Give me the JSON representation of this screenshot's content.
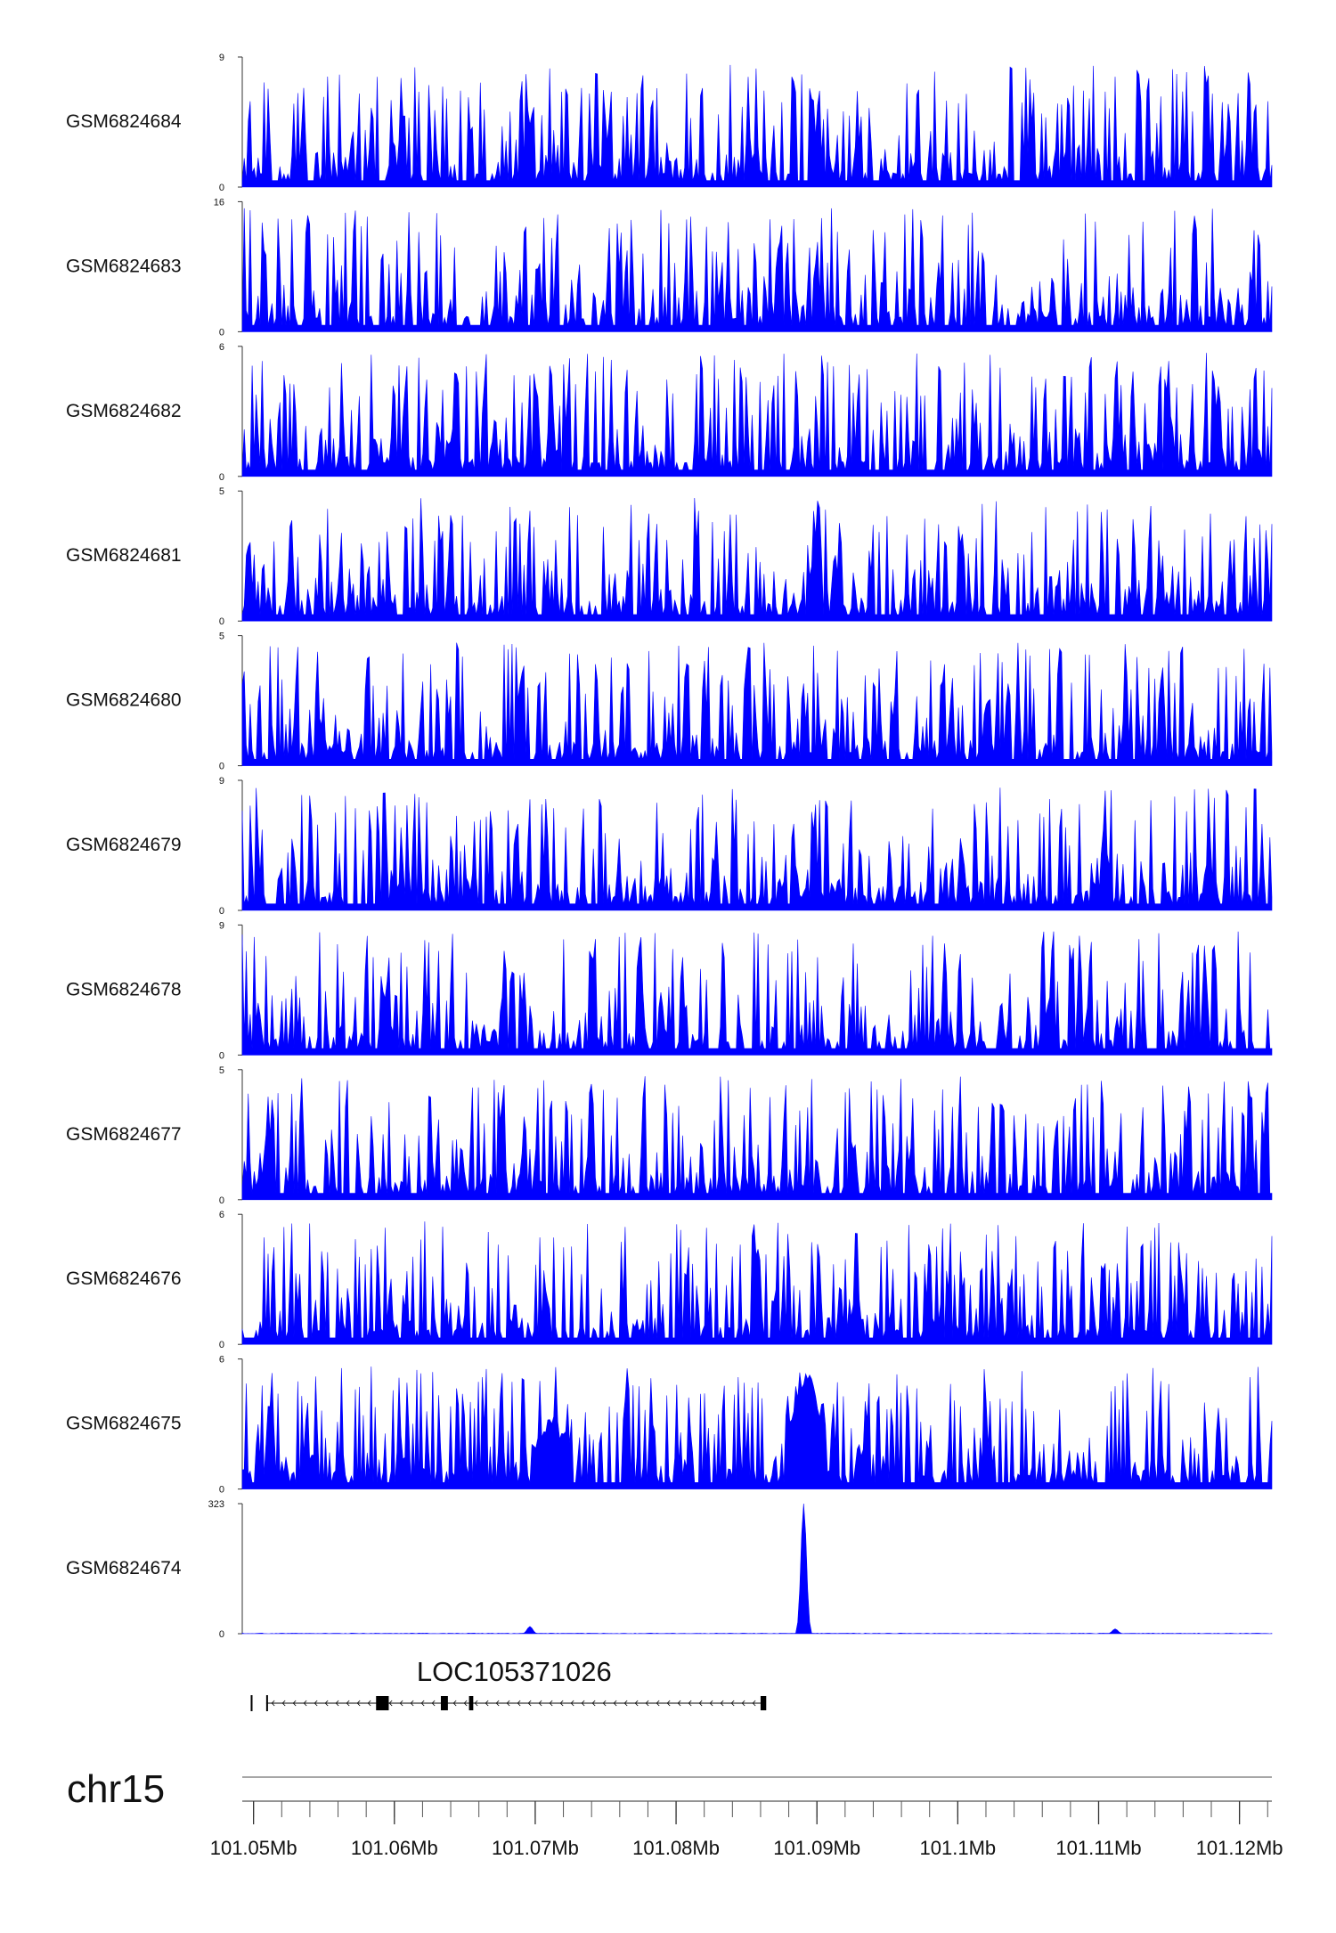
{
  "chart_data": {
    "type": "area",
    "title": "",
    "chromosome": "chr15",
    "xlim": [
      101.0492,
      101.1223
    ],
    "x_unit": "Mb",
    "color": "#0000FF",
    "tracks": [
      {
        "name": "GSM6824684",
        "ylim": [
          0,
          9
        ],
        "ymax_label": "9",
        "ymin_label": "0",
        "seed": 84
      },
      {
        "name": "GSM6824683",
        "ylim": [
          0,
          16
        ],
        "ymax_label": "16",
        "ymin_label": "0",
        "seed": 83
      },
      {
        "name": "GSM6824682",
        "ylim": [
          0,
          6
        ],
        "ymax_label": "6",
        "ymin_label": "0",
        "seed": 82
      },
      {
        "name": "GSM6824681",
        "ylim": [
          0,
          5
        ],
        "ymax_label": "5",
        "ymin_label": "0",
        "seed": 81
      },
      {
        "name": "GSM6824680",
        "ylim": [
          0,
          5
        ],
        "ymax_label": "5",
        "ymin_label": "0",
        "seed": 80
      },
      {
        "name": "GSM6824679",
        "ylim": [
          0,
          9
        ],
        "ymax_label": "9",
        "ymin_label": "0",
        "seed": 79
      },
      {
        "name": "GSM6824678",
        "ylim": [
          0,
          9
        ],
        "ymax_label": "9",
        "ymin_label": "0",
        "seed": 78
      },
      {
        "name": "GSM6824677",
        "ylim": [
          0,
          5
        ],
        "ymax_label": "5",
        "ymin_label": "0",
        "seed": 77
      },
      {
        "name": "GSM6824676",
        "ylim": [
          0,
          6
        ],
        "ymax_label": "6",
        "ymin_label": "0",
        "seed": 76
      },
      {
        "name": "GSM6824675",
        "ylim": [
          0,
          6
        ],
        "ymax_label": "6",
        "ymin_label": "0",
        "seed": 75,
        "peaks": [
          [
            101.0712,
            3.6
          ],
          [
            101.0892,
            6.0
          ]
        ]
      },
      {
        "name": "GSM6824674",
        "ylim": [
          0,
          323
        ],
        "ymax_label": "323",
        "ymin_label": "0",
        "seed": 74,
        "peaks": [
          [
            101.0891,
            323
          ],
          [
            101.0696,
            18
          ],
          [
            101.1112,
            12
          ]
        ]
      }
    ],
    "gene": {
      "name": "LOC105371026",
      "start": 101.0498,
      "end": 101.0862,
      "exons": [
        [
          101.0498,
          101.0499
        ],
        [
          101.0509,
          101.051
        ],
        [
          101.0587,
          101.0596
        ],
        [
          101.0633,
          101.0638
        ],
        [
          101.0653,
          101.0656
        ],
        [
          101.086,
          101.0864
        ]
      ]
    },
    "x_ticks": [
      {
        "value": 101.05,
        "label": "101.05Mb"
      },
      {
        "value": 101.06,
        "label": "101.06Mb"
      },
      {
        "value": 101.07,
        "label": "101.07Mb"
      },
      {
        "value": 101.08,
        "label": "101.08Mb"
      },
      {
        "value": 101.09,
        "label": "101.09Mb"
      },
      {
        "value": 101.1,
        "label": "101.1Mb"
      },
      {
        "value": 101.11,
        "label": "101.11Mb"
      },
      {
        "value": 101.12,
        "label": "101.12Mb"
      }
    ],
    "minor_tick_step": 0.002
  }
}
